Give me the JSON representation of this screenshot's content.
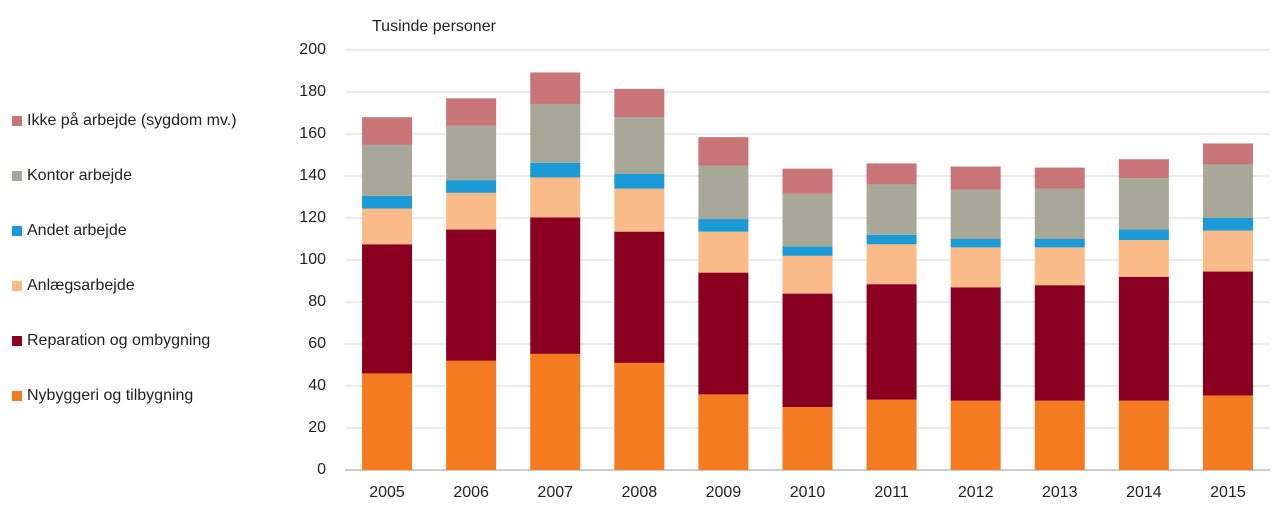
{
  "chart_data": {
    "type": "stacked_bar",
    "y_label": "Tusinde personer",
    "categories": [
      "2005",
      "2006",
      "2007",
      "2008",
      "2009",
      "2010",
      "2011",
      "2012",
      "2013",
      "2014",
      "2015"
    ],
    "series": [
      {
        "name": "Nybyggeri og tilbygning",
        "color": "#f47b20",
        "values": [
          46,
          52,
          55.3,
          51,
          36,
          30,
          33.5,
          33,
          33,
          33,
          35.5
        ]
      },
      {
        "name": "Reparation og ombygning",
        "color": "#8b0020",
        "values": [
          61.5,
          62.5,
          65,
          62.5,
          58,
          54,
          55,
          54,
          55,
          59,
          59
        ]
      },
      {
        "name": "Anlægsarbejde",
        "color": "#fbbb88",
        "values": [
          17,
          17.5,
          19,
          20.5,
          19.5,
          18,
          19,
          19,
          18,
          17.5,
          19.5
        ]
      },
      {
        "name": "Andet arbejde",
        "color": "#1a9ad6",
        "values": [
          6,
          6,
          7,
          7,
          6,
          4.5,
          4.5,
          4,
          4,
          5,
          6
        ]
      },
      {
        "name": "Kontor arbejde",
        "color": "#a8a898",
        "values": [
          24.5,
          26,
          28,
          27,
          25.5,
          25,
          24,
          23.5,
          24,
          24.5,
          25.5
        ]
      },
      {
        "name": "Ikke på arbejde (sygdom mv.)",
        "color": "#c97577",
        "values": [
          13,
          13,
          15,
          13.5,
          13.5,
          12,
          10,
          11,
          10,
          9,
          10
        ]
      }
    ],
    "ylim": [
      0,
      200
    ],
    "yticks": [
      0,
      20,
      40,
      60,
      80,
      100,
      120,
      140,
      160,
      180,
      200
    ],
    "grid": true,
    "legend": "left"
  }
}
